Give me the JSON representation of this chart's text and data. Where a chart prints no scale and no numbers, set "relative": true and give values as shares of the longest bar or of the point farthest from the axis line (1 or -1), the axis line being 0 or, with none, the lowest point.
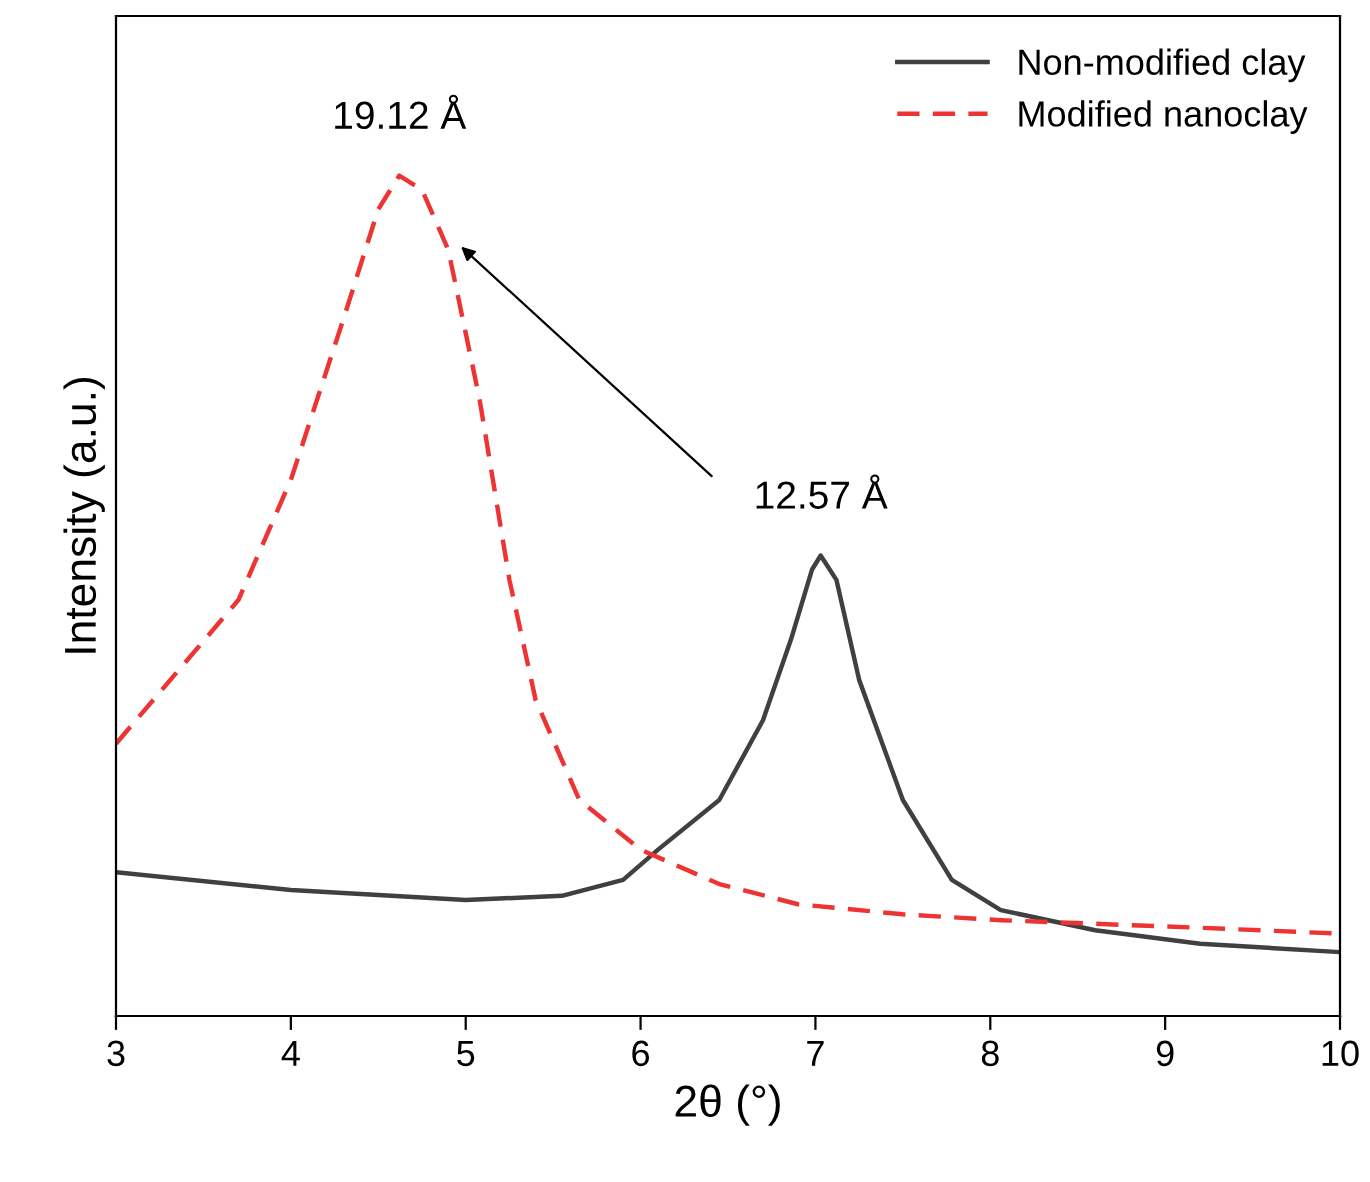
{
  "chart_data": {
    "type": "line",
    "xlabel": "2θ (°)",
    "ylabel": "Intensity (a.u.)",
    "relative": true,
    "xlim": [
      3,
      10
    ],
    "xticks": [
      3,
      4,
      5,
      6,
      7,
      8,
      9,
      10
    ],
    "legend": "top right",
    "grid": false,
    "series": [
      {
        "name": "Non-modified clay",
        "color": "#404040",
        "line_style": "solid",
        "x": [
          3.0,
          4.0,
          5.0,
          5.55,
          5.9,
          6.1,
          6.45,
          6.7,
          6.86,
          6.98,
          7.03,
          7.12,
          7.25,
          7.5,
          7.78,
          8.06,
          8.6,
          9.2,
          10.0
        ],
        "values": [
          0.171,
          0.15,
          0.138,
          0.143,
          0.162,
          0.198,
          0.257,
          0.352,
          0.448,
          0.531,
          0.548,
          0.519,
          0.4,
          0.257,
          0.162,
          0.126,
          0.102,
          0.086,
          0.076
        ]
      },
      {
        "name": "Modified nanoclay",
        "color": "#ee3333",
        "line_style": "dashed",
        "x": [
          3.0,
          3.7,
          4.0,
          4.3,
          4.5,
          4.62,
          4.75,
          4.9,
          5.08,
          5.25,
          5.4,
          5.65,
          6.0,
          6.45,
          6.9,
          7.5,
          8.06,
          9.2,
          10.0
        ],
        "values": [
          0.324,
          0.495,
          0.638,
          0.829,
          0.96,
          1,
          0.983,
          0.912,
          0.733,
          0.519,
          0.376,
          0.257,
          0.198,
          0.157,
          0.133,
          0.121,
          0.114,
          0.105,
          0.098
        ]
      }
    ],
    "annotations": [
      {
        "text": "19.12 Å",
        "x": 4.62,
        "y": 1
      },
      {
        "text": "12.57 Å",
        "x": 7.03,
        "y": 0.548
      }
    ]
  }
}
